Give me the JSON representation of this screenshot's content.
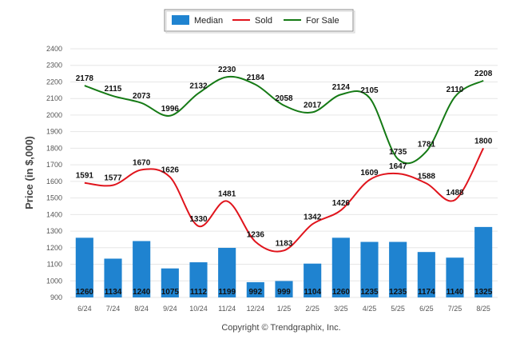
{
  "chart_data": {
    "type": "bar",
    "title": "",
    "xlabel": "",
    "ylabel": "Price (in $,000)",
    "ylim": [
      900,
      2400
    ],
    "yticks": [
      900,
      1000,
      1100,
      1200,
      1300,
      1400,
      1500,
      1600,
      1700,
      1800,
      1900,
      2000,
      2100,
      2200,
      2300,
      2400
    ],
    "categories": [
      "6/24",
      "7/24",
      "8/24",
      "9/24",
      "10/24",
      "11/24",
      "12/24",
      "1/25",
      "2/25",
      "3/25",
      "4/25",
      "5/25",
      "6/25",
      "7/25",
      "8/25"
    ],
    "grid": true,
    "legend_position": "top-center",
    "series": [
      {
        "name": "Median",
        "type": "bar",
        "color": "#1f83d0",
        "values": [
          1260,
          1134,
          1240,
          1075,
          1112,
          1199,
          992,
          999,
          1104,
          1260,
          1235,
          1235,
          1174,
          1140,
          1325
        ]
      },
      {
        "name": "Sold",
        "type": "line",
        "color": "#e0141c",
        "values": [
          1591,
          1577,
          1670,
          1626,
          1330,
          1481,
          1236,
          1183,
          1342,
          1426,
          1609,
          1647,
          1588,
          1488,
          1800
        ]
      },
      {
        "name": "For Sale",
        "type": "line",
        "color": "#157a15",
        "values": [
          2178,
          2115,
          2073,
          1996,
          2132,
          2230,
          2184,
          2058,
          2017,
          2124,
          2105,
          1735,
          1781,
          2110,
          2208
        ]
      }
    ],
    "footer": "Copyright © Trendgraphix, Inc."
  }
}
